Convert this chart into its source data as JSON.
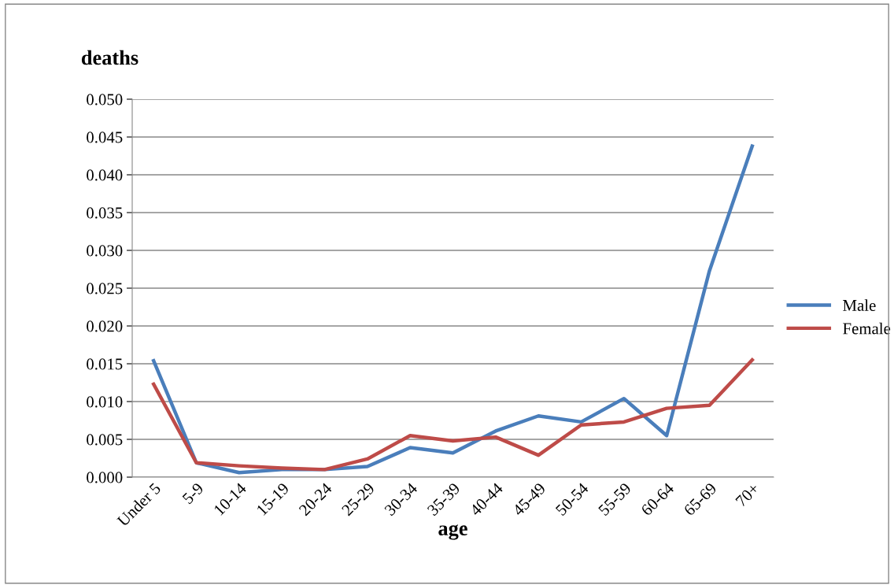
{
  "chart_data": {
    "type": "line",
    "ylabel": "deaths",
    "xlabel": "age",
    "categories": [
      "Under 5",
      "5-9",
      "10-14",
      "15-19",
      "20-24",
      "25-29",
      "30-34",
      "35-39",
      "40-44",
      "45-49",
      "50-54",
      "55-59",
      "60-64",
      "65-69",
      "70+"
    ],
    "series": [
      {
        "name": "Male",
        "color": "#4a7ebb",
        "values": [
          0.0154,
          0.0019,
          0.0006,
          0.001,
          0.001,
          0.0014,
          0.0039,
          0.0032,
          0.0061,
          0.0081,
          0.0073,
          0.0104,
          0.0055,
          0.0273,
          0.0438
        ]
      },
      {
        "name": "Female",
        "color": "#be4b48",
        "values": [
          0.0123,
          0.0019,
          0.0015,
          0.0012,
          0.001,
          0.0024,
          0.0055,
          0.0048,
          0.0053,
          0.0029,
          0.0069,
          0.0073,
          0.0091,
          0.0095,
          0.0155
        ]
      }
    ],
    "ylim": [
      0,
      0.05
    ],
    "yticks": [
      {
        "value": 0,
        "label": "0.000"
      },
      {
        "value": 0.005,
        "label": "0.005"
      },
      {
        "value": 0.01,
        "label": "0.010"
      },
      {
        "value": 0.015,
        "label": "0.015"
      },
      {
        "value": 0.02,
        "label": "0.020"
      },
      {
        "value": 0.025,
        "label": "0.025"
      },
      {
        "value": 0.03,
        "label": "0.030"
      },
      {
        "value": 0.035,
        "label": "0.035"
      },
      {
        "value": 0.04,
        "label": "0.040"
      },
      {
        "value": 0.045,
        "label": "0.045"
      },
      {
        "value": 0.05,
        "label": "0.050"
      }
    ],
    "grid": "y",
    "legend": "right",
    "marker": "none",
    "line_style": "solid"
  }
}
